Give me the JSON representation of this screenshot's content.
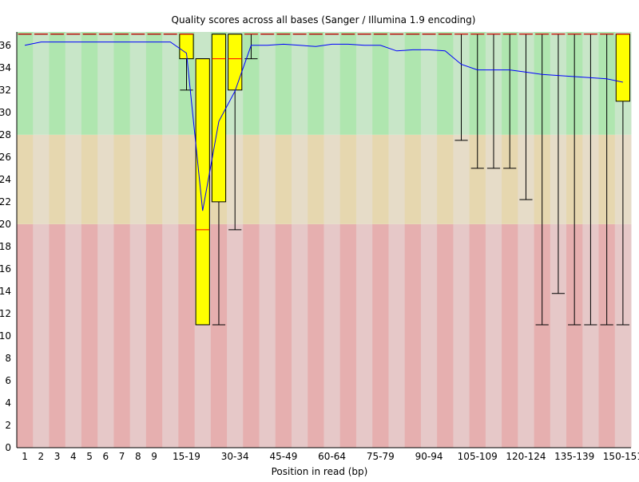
{
  "chart_data": {
    "type": "box",
    "title": "Quality scores across all bases (Sanger / Illumina 1.9 encoding)",
    "xlabel": "Position in read (bp)",
    "ylabel": "",
    "ylim": [
      0,
      37.2
    ],
    "yticks": [
      0,
      2,
      4,
      6,
      8,
      10,
      12,
      14,
      16,
      18,
      20,
      22,
      24,
      26,
      28,
      30,
      32,
      34,
      36
    ],
    "quality_zones": [
      {
        "name": "poor",
        "from": 0,
        "to": 20,
        "colors": [
          "#e6afaf",
          "#e6c8c8"
        ]
      },
      {
        "name": "reasonable",
        "from": 20,
        "to": 28,
        "colors": [
          "#e6d7af",
          "#e6dcc8"
        ]
      },
      {
        "name": "good",
        "from": 28,
        "to": 37.2,
        "colors": [
          "#afe6af",
          "#c8e6c8"
        ]
      }
    ],
    "categories": [
      "1",
      "2",
      "3",
      "4",
      "5",
      "6",
      "7",
      "8",
      "9",
      "10-14",
      "15-19",
      "20-24",
      "25-29",
      "30-34",
      "35-39",
      "40-44",
      "45-49",
      "50-54",
      "55-59",
      "60-64",
      "65-69",
      "70-74",
      "75-79",
      "80-84",
      "85-89",
      "90-94",
      "95-99",
      "100-104",
      "105-109",
      "110-114",
      "115-119",
      "120-124",
      "125-129",
      "130-134",
      "135-139",
      "140-144",
      "145-149",
      "150-151"
    ],
    "tick_labels": [
      "1",
      "2",
      "3",
      "4",
      "5",
      "6",
      "7",
      "8",
      "9",
      "15-19",
      "30-34",
      "45-49",
      "60-64",
      "75-79",
      "90-94",
      "105-109",
      "120-124",
      "135-139",
      "150-151"
    ],
    "mean": [
      36.0,
      36.3,
      36.3,
      36.3,
      36.3,
      36.3,
      36.3,
      36.3,
      36.3,
      36.3,
      35.3,
      21.2,
      29.2,
      31.9,
      36.0,
      36.0,
      36.1,
      36.0,
      35.9,
      36.1,
      36.1,
      36.0,
      36.0,
      35.5,
      35.6,
      35.6,
      35.5,
      34.3,
      33.8,
      33.8,
      33.8,
      33.6,
      33.4,
      33.3,
      33.2,
      33.1,
      33.0,
      32.7
    ],
    "boxes": [
      {
        "category": "1",
        "lower_whisker": 37,
        "q1": 37,
        "median": 37,
        "q3": 37,
        "upper_whisker": 37
      },
      {
        "category": "2",
        "lower_whisker": 37,
        "q1": 37,
        "median": 37,
        "q3": 37,
        "upper_whisker": 37
      },
      {
        "category": "3",
        "lower_whisker": 37,
        "q1": 37,
        "median": 37,
        "q3": 37,
        "upper_whisker": 37
      },
      {
        "category": "4",
        "lower_whisker": 37,
        "q1": 37,
        "median": 37,
        "q3": 37,
        "upper_whisker": 37
      },
      {
        "category": "5",
        "lower_whisker": 37,
        "q1": 37,
        "median": 37,
        "q3": 37,
        "upper_whisker": 37
      },
      {
        "category": "6",
        "lower_whisker": 37,
        "q1": 37,
        "median": 37,
        "q3": 37,
        "upper_whisker": 37
      },
      {
        "category": "7",
        "lower_whisker": 37,
        "q1": 37,
        "median": 37,
        "q3": 37,
        "upper_whisker": 37
      },
      {
        "category": "8",
        "lower_whisker": 37,
        "q1": 37,
        "median": 37,
        "q3": 37,
        "upper_whisker": 37
      },
      {
        "category": "9",
        "lower_whisker": 37,
        "q1": 37,
        "median": 37,
        "q3": 37,
        "upper_whisker": 37
      },
      {
        "category": "10-14",
        "lower_whisker": 37,
        "q1": 37,
        "median": 37,
        "q3": 37,
        "upper_whisker": 37
      },
      {
        "category": "15-19",
        "lower_whisker": 32,
        "q1": 34.8,
        "median": 37,
        "q3": 37,
        "upper_whisker": 37
      },
      {
        "category": "20-24",
        "lower_whisker": 11,
        "q1": 11,
        "median": 19.5,
        "q3": 34.8,
        "upper_whisker": 34.8
      },
      {
        "category": "25-29",
        "lower_whisker": 11,
        "q1": 22,
        "median": 34.8,
        "q3": 37,
        "upper_whisker": 37
      },
      {
        "category": "30-34",
        "lower_whisker": 19.5,
        "q1": 32,
        "median": 34.8,
        "q3": 37,
        "upper_whisker": 37
      },
      {
        "category": "35-39",
        "lower_whisker": 34.8,
        "q1": 37,
        "median": 37,
        "q3": 37,
        "upper_whisker": 37
      },
      {
        "category": "40-44",
        "lower_whisker": 37,
        "q1": 37,
        "median": 37,
        "q3": 37,
        "upper_whisker": 37
      },
      {
        "category": "45-49",
        "lower_whisker": 37,
        "q1": 37,
        "median": 37,
        "q3": 37,
        "upper_whisker": 37
      },
      {
        "category": "50-54",
        "lower_whisker": 37,
        "q1": 37,
        "median": 37,
        "q3": 37,
        "upper_whisker": 37
      },
      {
        "category": "55-59",
        "lower_whisker": 37,
        "q1": 37,
        "median": 37,
        "q3": 37,
        "upper_whisker": 37
      },
      {
        "category": "60-64",
        "lower_whisker": 37,
        "q1": 37,
        "median": 37,
        "q3": 37,
        "upper_whisker": 37
      },
      {
        "category": "65-69",
        "lower_whisker": 37,
        "q1": 37,
        "median": 37,
        "q3": 37,
        "upper_whisker": 37
      },
      {
        "category": "70-74",
        "lower_whisker": 37,
        "q1": 37,
        "median": 37,
        "q3": 37,
        "upper_whisker": 37
      },
      {
        "category": "75-79",
        "lower_whisker": 37,
        "q1": 37,
        "median": 37,
        "q3": 37,
        "upper_whisker": 37
      },
      {
        "category": "80-84",
        "lower_whisker": 37,
        "q1": 37,
        "median": 37,
        "q3": 37,
        "upper_whisker": 37
      },
      {
        "category": "85-89",
        "lower_whisker": 37,
        "q1": 37,
        "median": 37,
        "q3": 37,
        "upper_whisker": 37
      },
      {
        "category": "90-94",
        "lower_whisker": 37,
        "q1": 37,
        "median": 37,
        "q3": 37,
        "upper_whisker": 37
      },
      {
        "category": "95-99",
        "lower_whisker": 37,
        "q1": 37,
        "median": 37,
        "q3": 37,
        "upper_whisker": 37
      },
      {
        "category": "100-104",
        "lower_whisker": 27.5,
        "q1": 37,
        "median": 37,
        "q3": 37,
        "upper_whisker": 37
      },
      {
        "category": "105-109",
        "lower_whisker": 25,
        "q1": 37,
        "median": 37,
        "q3": 37,
        "upper_whisker": 37
      },
      {
        "category": "110-114",
        "lower_whisker": 25,
        "q1": 37,
        "median": 37,
        "q3": 37,
        "upper_whisker": 37
      },
      {
        "category": "115-119",
        "lower_whisker": 25,
        "q1": 37,
        "median": 37,
        "q3": 37,
        "upper_whisker": 37
      },
      {
        "category": "120-124",
        "lower_whisker": 22.2,
        "q1": 37,
        "median": 37,
        "q3": 37,
        "upper_whisker": 37
      },
      {
        "category": "125-129",
        "lower_whisker": 11,
        "q1": 37,
        "median": 37,
        "q3": 37,
        "upper_whisker": 37
      },
      {
        "category": "130-134",
        "lower_whisker": 13.8,
        "q1": 37,
        "median": 37,
        "q3": 37,
        "upper_whisker": 37
      },
      {
        "category": "135-139",
        "lower_whisker": 11,
        "q1": 37,
        "median": 37,
        "q3": 37,
        "upper_whisker": 37
      },
      {
        "category": "140-144",
        "lower_whisker": 11,
        "q1": 37,
        "median": 37,
        "q3": 37,
        "upper_whisker": 37
      },
      {
        "category": "145-149",
        "lower_whisker": 11,
        "q1": 37,
        "median": 37,
        "q3": 37,
        "upper_whisker": 37
      },
      {
        "category": "150-151",
        "lower_whisker": 11,
        "q1": 31,
        "median": 37,
        "q3": 37,
        "upper_whisker": 37
      }
    ],
    "colors": {
      "box_fill": "#ffff00",
      "box_stroke": "#000000",
      "median": "#ff0000",
      "mean_line": "#0000ff",
      "whisker": "#000000",
      "axis": "#000000"
    }
  }
}
